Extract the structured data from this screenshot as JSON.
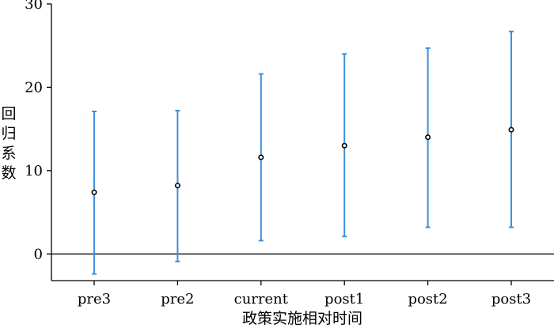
{
  "chart_data": {
    "type": "scatter",
    "title": "",
    "xlabel": "政策实施相对时间",
    "ylabel": "回归系数",
    "categories": [
      "pre3",
      "pre2",
      "current",
      "post1",
      "post2",
      "post3"
    ],
    "series": [
      {
        "values": [
          7.4,
          8.2,
          11.6,
          13.0,
          14.0,
          14.9
        ],
        "lower": [
          -2.4,
          -0.9,
          1.6,
          2.1,
          3.2,
          3.2
        ],
        "upper": [
          17.1,
          17.2,
          21.6,
          24.0,
          24.7,
          26.7
        ]
      }
    ],
    "ylim": [
      -3.2,
      30
    ],
    "yticks": [
      0,
      10,
      20,
      30
    ],
    "reference_line": 0,
    "grid": false,
    "legend": "none",
    "colors": {
      "errorbar": "#3d8fdb",
      "point": "#000000",
      "axis": "#000000"
    }
  }
}
